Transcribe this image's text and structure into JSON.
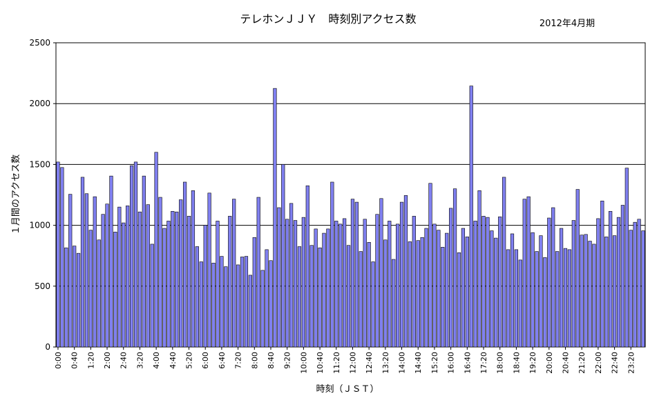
{
  "chart_data": {
    "type": "bar",
    "title": "テレホンＪＪＹ　時刻別アクセス数",
    "period": "2012年4月期",
    "xlabel": "時刻（ＪＳＴ）",
    "ylabel": "１月間のアクセス数",
    "ylim": [
      0,
      2500
    ],
    "yticks": [
      0,
      500,
      1000,
      1500,
      2000,
      2500
    ],
    "grid": true,
    "bar_color": "#8080f0",
    "interval_minutes": 10,
    "categories": [
      "0:00",
      "0:10",
      "0:20",
      "0:30",
      "0:40",
      "0:50",
      "1:00",
      "1:10",
      "1:20",
      "1:30",
      "1:40",
      "1:50",
      "2:00",
      "2:10",
      "2:20",
      "2:30",
      "2:40",
      "2:50",
      "3:00",
      "3:10",
      "3:20",
      "3:30",
      "3:40",
      "3:50",
      "4:00",
      "4:10",
      "4:20",
      "4:30",
      "4:40",
      "4:50",
      "5:00",
      "5:10",
      "5:20",
      "5:30",
      "5:40",
      "5:50",
      "6:00",
      "6:10",
      "6:20",
      "6:30",
      "6:40",
      "6:50",
      "7:00",
      "7:10",
      "7:20",
      "7:30",
      "7:40",
      "7:50",
      "8:00",
      "8:10",
      "8:20",
      "8:30",
      "8:40",
      "8:50",
      "9:00",
      "9:10",
      "9:20",
      "9:30",
      "9:40",
      "9:50",
      "10:00",
      "10:10",
      "10:20",
      "10:30",
      "10:40",
      "10:50",
      "11:00",
      "11:10",
      "11:20",
      "11:30",
      "11:40",
      "11:50",
      "12:00",
      "12:10",
      "12:20",
      "12:30",
      "12:40",
      "12:50",
      "13:00",
      "13:10",
      "13:20",
      "13:30",
      "13:40",
      "13:50",
      "14:00",
      "14:10",
      "14:20",
      "14:30",
      "14:40",
      "14:50",
      "15:00",
      "15:10",
      "15:20",
      "15:30",
      "15:40",
      "15:50",
      "16:00",
      "16:10",
      "16:20",
      "16:30",
      "16:40",
      "16:50",
      "17:00",
      "17:10",
      "17:20",
      "17:30",
      "17:40",
      "17:50",
      "18:00",
      "18:10",
      "18:20",
      "18:30",
      "18:40",
      "18:50",
      "19:00",
      "19:10",
      "19:20",
      "19:30",
      "19:40",
      "19:50",
      "20:00",
      "20:10",
      "20:20",
      "20:30",
      "20:40",
      "20:50",
      "21:00",
      "21:10",
      "21:20",
      "21:30",
      "21:40",
      "21:50",
      "22:00",
      "22:10",
      "22:20",
      "22:30",
      "22:40",
      "22:50",
      "23:00",
      "23:10",
      "23:20",
      "23:30",
      "23:40",
      "23:50"
    ],
    "xtick_labels": [
      "0:00",
      "0:40",
      "1:20",
      "2:00",
      "2:40",
      "3:20",
      "4:00",
      "4:40",
      "5:20",
      "6:00",
      "6:40",
      "7:20",
      "8:00",
      "8:40",
      "9:20",
      "10:00",
      "10:40",
      "11:20",
      "12:00",
      "12:40",
      "13:20",
      "14:00",
      "14:40",
      "15:20",
      "16:00",
      "16:40",
      "17:20",
      "18:00",
      "18:40",
      "19:20",
      "20:00",
      "20:40",
      "21:20",
      "22:00",
      "22:40",
      "23:20"
    ],
    "values": [
      1520,
      1475,
      815,
      1255,
      830,
      770,
      1395,
      1260,
      960,
      1235,
      880,
      1090,
      1175,
      1405,
      945,
      1150,
      1020,
      1160,
      1490,
      1520,
      1110,
      1405,
      1170,
      845,
      1600,
      1230,
      975,
      1035,
      1115,
      1110,
      1210,
      1355,
      1075,
      1285,
      825,
      700,
      1000,
      1265,
      690,
      1035,
      745,
      660,
      1075,
      1215,
      675,
      740,
      745,
      590,
      900,
      1230,
      630,
      800,
      710,
      2125,
      1145,
      1500,
      1050,
      1180,
      1040,
      825,
      1065,
      1325,
      835,
      970,
      815,
      935,
      970,
      1355,
      1035,
      1010,
      1055,
      835,
      1215,
      1190,
      785,
      1050,
      860,
      700,
      1090,
      1220,
      880,
      1035,
      720,
      1010,
      1190,
      1245,
      865,
      1075,
      875,
      900,
      975,
      1345,
      1010,
      960,
      820,
      935,
      1140,
      1300,
      775,
      975,
      905,
      2145,
      1035,
      1285,
      1075,
      1065,
      955,
      895,
      1070,
      1395,
      800,
      930,
      800,
      715,
      1215,
      1235,
      940,
      785,
      915,
      735,
      1060,
      1145,
      785,
      975,
      810,
      800,
      1040,
      1295,
      920,
      925,
      870,
      845,
      1055,
      1200,
      905,
      1115,
      915,
      1065,
      1165,
      1470,
      960,
      1025,
      1050,
      955
    ]
  }
}
